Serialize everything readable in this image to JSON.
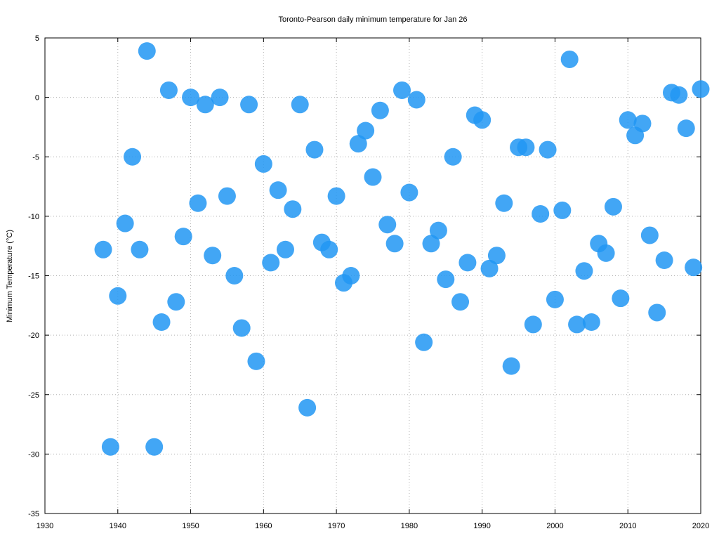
{
  "chart_data": {
    "type": "scatter",
    "title": "Toronto-Pearson daily minimum temperature for Jan 26",
    "xlabel": "",
    "ylabel": "Minimum Temperature (°C)",
    "xlim": [
      1930,
      2020
    ],
    "ylim": [
      -35,
      5
    ],
    "xticks": [
      1930,
      1940,
      1950,
      1960,
      1970,
      1980,
      1990,
      2000,
      2010,
      2020
    ],
    "yticks": [
      5,
      0,
      -5,
      -10,
      -15,
      -20,
      -25,
      -30,
      -35
    ],
    "grid": true,
    "marker_color": "#2196f3",
    "points": [
      {
        "x": 1938,
        "y": -12.8
      },
      {
        "x": 1939,
        "y": -29.4
      },
      {
        "x": 1940,
        "y": -16.7
      },
      {
        "x": 1941,
        "y": -10.6
      },
      {
        "x": 1942,
        "y": -5.0
      },
      {
        "x": 1943,
        "y": -12.8
      },
      {
        "x": 1944,
        "y": 3.9
      },
      {
        "x": 1945,
        "y": -29.4
      },
      {
        "x": 1946,
        "y": -18.9
      },
      {
        "x": 1947,
        "y": 0.6
      },
      {
        "x": 1948,
        "y": -17.2
      },
      {
        "x": 1949,
        "y": -11.7
      },
      {
        "x": 1950,
        "y": 0.0
      },
      {
        "x": 1951,
        "y": -8.9
      },
      {
        "x": 1952,
        "y": -0.6
      },
      {
        "x": 1953,
        "y": -13.3
      },
      {
        "x": 1954,
        "y": 0.0
      },
      {
        "x": 1955,
        "y": -8.3
      },
      {
        "x": 1956,
        "y": -15.0
      },
      {
        "x": 1957,
        "y": -19.4
      },
      {
        "x": 1958,
        "y": -0.6
      },
      {
        "x": 1959,
        "y": -22.2
      },
      {
        "x": 1960,
        "y": -5.6
      },
      {
        "x": 1961,
        "y": -13.9
      },
      {
        "x": 1962,
        "y": -7.8
      },
      {
        "x": 1963,
        "y": -12.8
      },
      {
        "x": 1964,
        "y": -9.4
      },
      {
        "x": 1965,
        "y": -0.6
      },
      {
        "x": 1966,
        "y": -26.1
      },
      {
        "x": 1967,
        "y": -4.4
      },
      {
        "x": 1968,
        "y": -12.2
      },
      {
        "x": 1969,
        "y": -12.8
      },
      {
        "x": 1970,
        "y": -8.3
      },
      {
        "x": 1971,
        "y": -15.6
      },
      {
        "x": 1972,
        "y": -15.0
      },
      {
        "x": 1973,
        "y": -3.9
      },
      {
        "x": 1974,
        "y": -2.8
      },
      {
        "x": 1975,
        "y": -6.7
      },
      {
        "x": 1976,
        "y": -1.1
      },
      {
        "x": 1977,
        "y": -10.7
      },
      {
        "x": 1978,
        "y": -12.3
      },
      {
        "x": 1979,
        "y": 0.6
      },
      {
        "x": 1980,
        "y": -8.0
      },
      {
        "x": 1981,
        "y": -0.2
      },
      {
        "x": 1982,
        "y": -20.6
      },
      {
        "x": 1983,
        "y": -12.3
      },
      {
        "x": 1984,
        "y": -11.2
      },
      {
        "x": 1985,
        "y": -15.3
      },
      {
        "x": 1986,
        "y": -5.0
      },
      {
        "x": 1987,
        "y": -17.2
      },
      {
        "x": 1988,
        "y": -13.9
      },
      {
        "x": 1989,
        "y": -1.5
      },
      {
        "x": 1990,
        "y": -1.9
      },
      {
        "x": 1991,
        "y": -14.4
      },
      {
        "x": 1992,
        "y": -13.3
      },
      {
        "x": 1993,
        "y": -8.9
      },
      {
        "x": 1994,
        "y": -22.6
      },
      {
        "x": 1995,
        "y": -4.2
      },
      {
        "x": 1996,
        "y": -4.2
      },
      {
        "x": 1997,
        "y": -19.1
      },
      {
        "x": 1998,
        "y": -9.8
      },
      {
        "x": 1999,
        "y": -4.4
      },
      {
        "x": 2000,
        "y": -17.0
      },
      {
        "x": 2001,
        "y": -9.5
      },
      {
        "x": 2002,
        "y": 3.2
      },
      {
        "x": 2003,
        "y": -19.1
      },
      {
        "x": 2004,
        "y": -14.6
      },
      {
        "x": 2005,
        "y": -18.9
      },
      {
        "x": 2006,
        "y": -12.3
      },
      {
        "x": 2007,
        "y": -13.1
      },
      {
        "x": 2008,
        "y": -9.2
      },
      {
        "x": 2009,
        "y": -16.9
      },
      {
        "x": 2010,
        "y": -1.9
      },
      {
        "x": 2011,
        "y": -3.2
      },
      {
        "x": 2012,
        "y": -2.2
      },
      {
        "x": 2013,
        "y": -11.6
      },
      {
        "x": 2014,
        "y": -18.1
      },
      {
        "x": 2015,
        "y": -13.7
      },
      {
        "x": 2016,
        "y": 0.4
      },
      {
        "x": 2017,
        "y": 0.2
      },
      {
        "x": 2018,
        "y": -2.6
      },
      {
        "x": 2019,
        "y": -14.3
      },
      {
        "x": 2020,
        "y": 0.7
      }
    ]
  }
}
